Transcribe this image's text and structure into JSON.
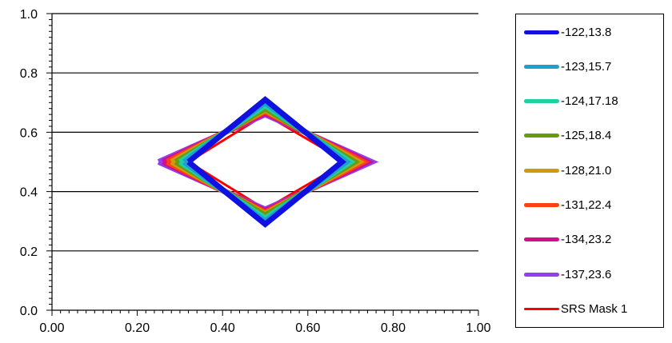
{
  "chart_data": {
    "type": "line",
    "title": "",
    "xlabel": "",
    "ylabel": "",
    "xlim": [
      0,
      1
    ],
    "ylim": [
      0,
      1
    ],
    "x_ticks": [
      "0.00",
      "0.20",
      "0.40",
      "0.60",
      "0.80",
      "1.00"
    ],
    "y_ticks": [
      "0.0",
      "0.2",
      "0.4",
      "0.6",
      "0.8",
      "1.0"
    ],
    "grid": "horizontal",
    "legend_position": "right",
    "series": [
      {
        "name": "-122,13.8",
        "color": "#1010e0",
        "points": [
          [
            0.32,
            0.5
          ],
          [
            0.5,
            0.71
          ],
          [
            0.68,
            0.5
          ],
          [
            0.5,
            0.29
          ],
          [
            0.32,
            0.5
          ]
        ]
      },
      {
        "name": "-123,15.7",
        "color": "#1e9fd0",
        "points": [
          [
            0.31,
            0.5
          ],
          [
            0.5,
            0.7
          ],
          [
            0.69,
            0.5
          ],
          [
            0.5,
            0.3
          ],
          [
            0.31,
            0.5
          ]
        ]
      },
      {
        "name": "-124,17.18",
        "color": "#20d0a0",
        "points": [
          [
            0.3,
            0.5
          ],
          [
            0.5,
            0.69
          ],
          [
            0.7,
            0.5
          ],
          [
            0.5,
            0.31
          ],
          [
            0.3,
            0.5
          ]
        ]
      },
      {
        "name": "-125,18.4",
        "color": "#6a9a10",
        "points": [
          [
            0.29,
            0.5
          ],
          [
            0.5,
            0.68
          ],
          [
            0.71,
            0.5
          ],
          [
            0.5,
            0.32
          ],
          [
            0.29,
            0.5
          ]
        ]
      },
      {
        "name": "-128,21.0",
        "color": "#d09a10",
        "points": [
          [
            0.28,
            0.5
          ],
          [
            0.5,
            0.675
          ],
          [
            0.72,
            0.5
          ],
          [
            0.5,
            0.325
          ],
          [
            0.28,
            0.5
          ]
        ]
      },
      {
        "name": "-131,22.4",
        "color": "#ff4010",
        "points": [
          [
            0.27,
            0.5
          ],
          [
            0.5,
            0.67
          ],
          [
            0.73,
            0.5
          ],
          [
            0.5,
            0.33
          ],
          [
            0.27,
            0.5
          ]
        ]
      },
      {
        "name": "-134,23.2",
        "color": "#d0108a",
        "points": [
          [
            0.26,
            0.5
          ],
          [
            0.5,
            0.665
          ],
          [
            0.74,
            0.5
          ],
          [
            0.5,
            0.335
          ],
          [
            0.26,
            0.5
          ]
        ]
      },
      {
        "name": "-137,23.6",
        "color": "#9040f0",
        "points": [
          [
            0.25,
            0.5
          ],
          [
            0.5,
            0.66
          ],
          [
            0.75,
            0.5
          ],
          [
            0.5,
            0.34
          ],
          [
            0.25,
            0.5
          ]
        ]
      },
      {
        "name": "SRS Mask 1",
        "color": "#ff0000",
        "thin": true,
        "points": [
          [
            0.32,
            0.5
          ],
          [
            0.5,
            0.66
          ],
          [
            0.69,
            0.5
          ],
          [
            0.5,
            0.34
          ],
          [
            0.32,
            0.5
          ]
        ]
      }
    ]
  }
}
